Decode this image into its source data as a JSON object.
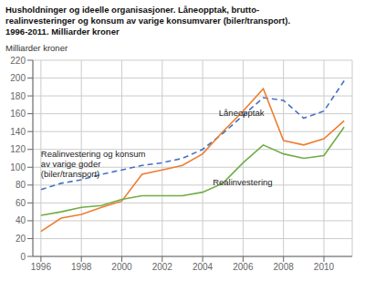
{
  "chart_data": {
    "type": "line",
    "title": "Husholdninger og ideelle organisasjoner. Låneopptak, brutto-\nrealinvesteringer og konsum av varige konsumvarer (biler/transport).\n1996-2011. Milliarder kroner",
    "ylabel": "Milliarder kroner",
    "x": [
      1996,
      1997,
      1998,
      1999,
      2000,
      2001,
      2002,
      2003,
      2004,
      2005,
      2006,
      2007,
      2008,
      2009,
      2010,
      2011
    ],
    "series": [
      {
        "color": "#4472C4",
        "line_style": "dashed",
        "values": [
          75,
          82,
          86,
          92,
          97,
          102,
          105,
          110,
          120,
          138,
          158,
          178,
          175,
          155,
          163,
          197
        ]
      },
      {
        "color": "#ED7D31",
        "line_style": "solid",
        "values": [
          28,
          43,
          47,
          55,
          62,
          92,
          97,
          102,
          115,
          140,
          163,
          188,
          130,
          125,
          132,
          152
        ]
      },
      {
        "color": "#70AD47",
        "line_style": "solid",
        "values": [
          46,
          50,
          55,
          57,
          64,
          68,
          68,
          68,
          72,
          82,
          105,
          125,
          115,
          110,
          113,
          145
        ]
      }
    ],
    "xlim": [
      1995.6,
      2011.4
    ],
    "xticks": [
      1996,
      1998,
      2000,
      2002,
      2004,
      2006,
      2008,
      2010
    ],
    "ylim": [
      0,
      220
    ],
    "yticks": [
      0,
      20,
      40,
      60,
      80,
      100,
      120,
      140,
      160,
      180,
      200,
      220
    ],
    "grid": true,
    "annotations": [
      {
        "text": "Låneopptak",
        "x": 2004.8,
        "y": 156
      },
      {
        "text": "Realinvestering og konsum\nav varige goder\n(biler/transport)",
        "x": 1996.0,
        "y": 122
      },
      {
        "text": "Realinvestering",
        "x": 2004.5,
        "y": 78
      }
    ]
  }
}
